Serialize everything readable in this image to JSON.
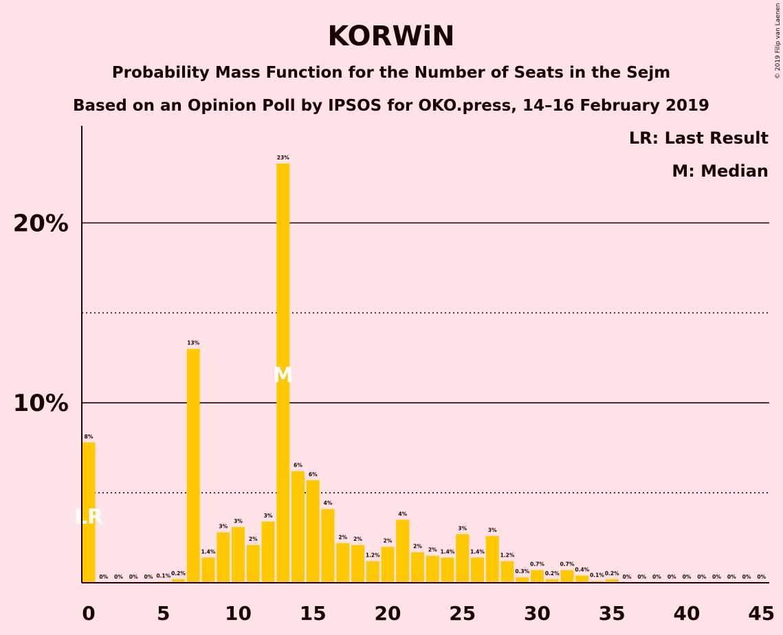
{
  "title": "KORWiN",
  "subtitle1": "Probability Mass Function for the Number of Seats in the Sejm",
  "subtitle2": "Based on an Opinion Poll by IPSOS for OKO.press, 14–16 February 2019",
  "legend": {
    "last_result": "LR: Last Result",
    "median": "M: Median"
  },
  "credit": "© 2019 Filip van Laenen",
  "colors": {
    "background": "#FFE3E7",
    "bar": "#FFC800",
    "text": "#1a0000",
    "marker": "#FFFFFF"
  },
  "chart_data": {
    "type": "bar",
    "x": [
      0,
      1,
      2,
      3,
      4,
      5,
      6,
      7,
      8,
      9,
      10,
      11,
      12,
      13,
      14,
      15,
      16,
      17,
      18,
      19,
      20,
      21,
      22,
      23,
      24,
      25,
      26,
      27,
      28,
      29,
      30,
      31,
      32,
      33,
      34,
      35,
      36,
      37,
      38,
      39,
      40,
      41,
      42,
      43,
      44,
      45
    ],
    "values": [
      7.8,
      0,
      0,
      0,
      0,
      0.06,
      0.2,
      13,
      1.4,
      2.8,
      3.1,
      2.1,
      3.4,
      23.3,
      6.2,
      5.7,
      4.1,
      2.2,
      2.1,
      1.2,
      2.0,
      3.5,
      1.7,
      1.5,
      1.4,
      2.7,
      1.4,
      2.6,
      1.2,
      0.3,
      0.7,
      0.2,
      0.7,
      0.4,
      0.1,
      0.2,
      0,
      0,
      0,
      0,
      0,
      0,
      0,
      0,
      0,
      0
    ],
    "labels": [
      "8%",
      "0%",
      "0%",
      "0%",
      "0%",
      "0.1%",
      "0.2%",
      "13%",
      "1.4%",
      "3%",
      "3%",
      "2%",
      "3%",
      "23%",
      "6%",
      "6%",
      "4%",
      "2%",
      "2%",
      "1.2%",
      "2%",
      "4%",
      "2%",
      "2%",
      "1.4%",
      "3%",
      "1.4%",
      "3%",
      "1.2%",
      "0.3%",
      "0.7%",
      "0.2%",
      "0.7%",
      "0.4%",
      "0.1%",
      "0.2%",
      "0%",
      "0%",
      "0%",
      "0%",
      "0%",
      "0%",
      "0%",
      "0%",
      "0%",
      "0%"
    ],
    "xticks": [
      0,
      5,
      10,
      15,
      20,
      25,
      30,
      35,
      40,
      45
    ],
    "xtick_labels": [
      "0",
      "5",
      "10",
      "15",
      "20",
      "25",
      "30",
      "35",
      "40",
      "45"
    ],
    "yticks_major": [
      10,
      20
    ],
    "ytick_labels": [
      "10%",
      "20%"
    ],
    "yticks_minor": [
      5,
      15
    ],
    "ylim": [
      0,
      25.4
    ],
    "xlim": [
      0,
      45
    ],
    "last_result_seat": 0,
    "last_result_marker": "LR",
    "median_seat": 13,
    "median_marker": "M",
    "grid": "solid at major ticks, dotted at minor ticks",
    "legend_position": "top-right"
  }
}
